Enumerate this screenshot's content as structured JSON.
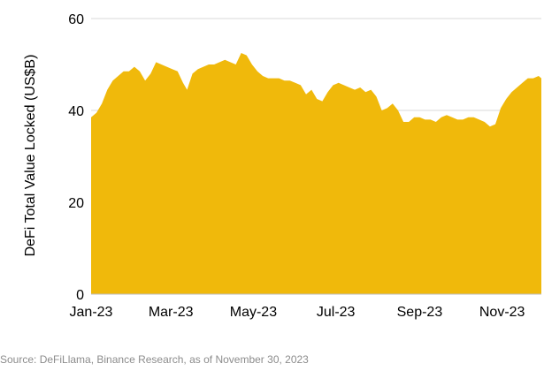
{
  "chart_data": {
    "type": "area",
    "title": "",
    "xlabel": "",
    "ylabel": "DeFi Total Value Locked (US$B)",
    "ylim": [
      0,
      60
    ],
    "yticks": [
      0,
      20,
      40,
      60
    ],
    "xticks": [
      "Jan-23",
      "Mar-23",
      "May-23",
      "Jul-23",
      "Sep-23",
      "Nov-23"
    ],
    "xrange": [
      "2023-01-01",
      "2023-11-30"
    ],
    "grid": "horizontal",
    "color": "#F0B90B",
    "series": [
      {
        "x": [
          "2023-01-01",
          "2023-01-05",
          "2023-01-09",
          "2023-01-13",
          "2023-01-17",
          "2023-01-21",
          "2023-01-25",
          "2023-01-29",
          "2023-02-02",
          "2023-02-06",
          "2023-02-10",
          "2023-02-14",
          "2023-02-18",
          "2023-02-22",
          "2023-02-26",
          "2023-03-02",
          "2023-03-06",
          "2023-03-10",
          "2023-03-13",
          "2023-03-17",
          "2023-03-21",
          "2023-03-25",
          "2023-03-29",
          "2023-04-02",
          "2023-04-06",
          "2023-04-10",
          "2023-04-14",
          "2023-04-18",
          "2023-04-22",
          "2023-04-26",
          "2023-04-30",
          "2023-05-04",
          "2023-05-08",
          "2023-05-12",
          "2023-05-16",
          "2023-05-20",
          "2023-05-24",
          "2023-05-28",
          "2023-06-01",
          "2023-06-05",
          "2023-06-09",
          "2023-06-13",
          "2023-06-17",
          "2023-06-21",
          "2023-06-25",
          "2023-06-29",
          "2023-07-03",
          "2023-07-07",
          "2023-07-11",
          "2023-07-15",
          "2023-07-19",
          "2023-07-23",
          "2023-07-27",
          "2023-07-31",
          "2023-08-04",
          "2023-08-08",
          "2023-08-12",
          "2023-08-16",
          "2023-08-20",
          "2023-08-24",
          "2023-08-28",
          "2023-09-01",
          "2023-09-05",
          "2023-09-09",
          "2023-09-13",
          "2023-09-17",
          "2023-09-21",
          "2023-09-25",
          "2023-09-29",
          "2023-10-03",
          "2023-10-07",
          "2023-10-11",
          "2023-10-15",
          "2023-10-19",
          "2023-10-23",
          "2023-10-27",
          "2023-10-31",
          "2023-11-04",
          "2023-11-08",
          "2023-11-12",
          "2023-11-16",
          "2023-11-20",
          "2023-11-24",
          "2023-11-28",
          "2023-11-30"
        ],
        "values": [
          38.5,
          39.5,
          41.5,
          44.5,
          46.5,
          47.5,
          48.5,
          48.5,
          49.5,
          48.5,
          46.5,
          48.0,
          50.5,
          50.0,
          49.5,
          49.0,
          48.5,
          46.0,
          44.5,
          48.0,
          49.0,
          49.5,
          50.0,
          50.0,
          50.5,
          51.0,
          50.5,
          50.0,
          52.5,
          52.0,
          50.0,
          48.5,
          47.5,
          47.0,
          47.0,
          47.0,
          46.5,
          46.5,
          46.0,
          45.5,
          43.5,
          44.5,
          42.5,
          42.0,
          44.0,
          45.5,
          46.0,
          45.5,
          45.0,
          44.5,
          45.0,
          44.0,
          44.5,
          43.0,
          40.0,
          40.5,
          41.5,
          40.0,
          37.5,
          37.5,
          38.5,
          38.5,
          38.0,
          38.0,
          37.5,
          38.5,
          39.0,
          38.5,
          38.0,
          38.0,
          38.5,
          38.5,
          38.0,
          37.5,
          36.5,
          37.0,
          40.5,
          42.5,
          44.0,
          45.0,
          46.0,
          47.0,
          47.0,
          47.5,
          47.0
        ]
      }
    ]
  },
  "footer": {
    "source": "Source: DeFiLlama, Binance Research, as of November 30, 2023"
  }
}
